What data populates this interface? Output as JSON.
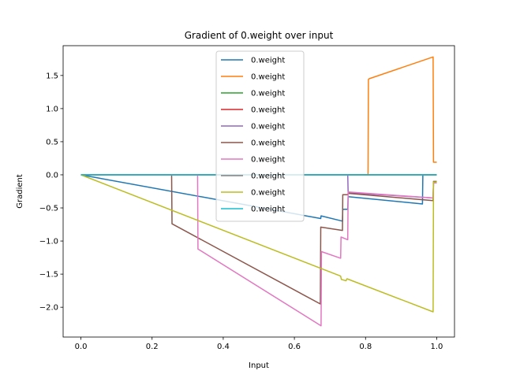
{
  "chart_data": {
    "type": "line",
    "title": "Gradient of 0.weight over input",
    "xlabel": "Input",
    "ylabel": "Gradient",
    "xlim": [
      -0.05,
      1.05
    ],
    "ylim": [
      -2.45,
      1.95
    ],
    "xticks": [
      "0.0",
      "0.2",
      "0.4",
      "0.6",
      "0.8",
      "1.0"
    ],
    "yticks": [
      "−2.0",
      "−1.5",
      "−1.0",
      "−0.5",
      "0.0",
      "0.5",
      "1.0",
      "1.5"
    ],
    "grid": false,
    "legend_placement": "upper center",
    "series": [
      {
        "name": "0.weight",
        "color": "#1f77b4",
        "x": [
          0.0,
          0.674,
          0.675,
          0.735,
          0.736,
          0.75,
          0.751,
          0.96,
          0.961,
          1.0
        ],
        "y": [
          0.0,
          -0.66,
          -0.62,
          -0.7,
          -0.52,
          -0.52,
          -0.33,
          -0.44,
          0.0,
          0.0
        ]
      },
      {
        "name": "0.weight",
        "color": "#ff7f0e",
        "x": [
          0.0,
          0.807,
          0.808,
          0.81,
          0.99,
          0.991,
          1.0
        ],
        "y": [
          0.0,
          0.0,
          1.44,
          1.45,
          1.78,
          0.19,
          0.19
        ]
      },
      {
        "name": "0.weight",
        "color": "#2ca02c",
        "x": [
          0.0,
          1.0
        ],
        "y": [
          0.0,
          0.0
        ]
      },
      {
        "name": "0.weight",
        "color": "#d62728",
        "x": [
          0.0,
          1.0
        ],
        "y": [
          0.0,
          0.0
        ]
      },
      {
        "name": "0.weight",
        "color": "#9467bd",
        "x": [
          0.0,
          0.75,
          0.751,
          0.99,
          0.991,
          1.0
        ],
        "y": [
          0.0,
          0.0,
          -0.27,
          -0.35,
          -0.12,
          -0.12
        ]
      },
      {
        "name": "0.weight",
        "color": "#8c564b",
        "x": [
          0.0,
          0.255,
          0.256,
          0.673,
          0.674,
          0.735,
          0.736,
          0.75,
          0.751,
          0.99,
          0.991,
          1.0
        ],
        "y": [
          0.0,
          0.0,
          -0.74,
          -1.95,
          -0.79,
          -0.84,
          -0.3,
          -0.3,
          -0.28,
          -0.39,
          -0.1,
          -0.1
        ]
      },
      {
        "name": "0.weight",
        "color": "#e377c2",
        "x": [
          0.0,
          0.328,
          0.329,
          0.675,
          0.676,
          0.73,
          0.731,
          0.75,
          0.751,
          0.99,
          0.991,
          1.0
        ],
        "y": [
          0.0,
          0.0,
          -1.12,
          -2.28,
          -1.16,
          -1.26,
          -0.94,
          -0.98,
          -0.26,
          -0.35,
          -0.12,
          -0.12
        ]
      },
      {
        "name": "0.weight",
        "color": "#7f7f7f",
        "x": [
          0.0,
          1.0
        ],
        "y": [
          0.0,
          0.0
        ]
      },
      {
        "name": "0.weight",
        "color": "#bcbd22",
        "x": [
          0.0,
          0.73,
          0.732,
          0.745,
          0.748,
          0.99,
          0.991,
          1.0
        ],
        "y": [
          0.0,
          -1.53,
          -1.58,
          -1.6,
          -1.57,
          -2.07,
          -0.11,
          -0.11
        ]
      },
      {
        "name": "0.weight",
        "color": "#17becf",
        "x": [
          0.0,
          1.0
        ],
        "y": [
          0.0,
          0.0
        ]
      }
    ]
  }
}
